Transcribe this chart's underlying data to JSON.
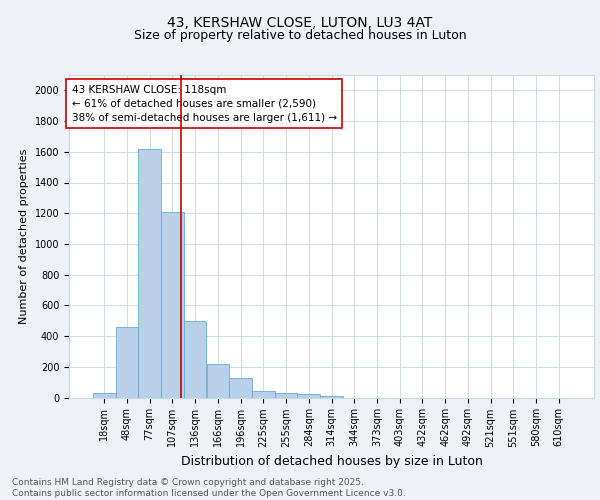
{
  "title1": "43, KERSHAW CLOSE, LUTON, LU3 4AT",
  "title2": "Size of property relative to detached houses in Luton",
  "xlabel": "Distribution of detached houses by size in Luton",
  "ylabel": "Number of detached properties",
  "categories": [
    "18sqm",
    "48sqm",
    "77sqm",
    "107sqm",
    "136sqm",
    "166sqm",
    "196sqm",
    "225sqm",
    "255sqm",
    "284sqm",
    "314sqm",
    "344sqm",
    "373sqm",
    "403sqm",
    "432sqm",
    "462sqm",
    "492sqm",
    "521sqm",
    "551sqm",
    "580sqm",
    "610sqm"
  ],
  "values": [
    30,
    460,
    1620,
    1210,
    500,
    220,
    130,
    45,
    30,
    20,
    10,
    0,
    0,
    0,
    0,
    0,
    0,
    0,
    0,
    0,
    0
  ],
  "bar_color": "#b8d0e8",
  "bar_edge_color": "#6aaad4",
  "vline_x": 3.37,
  "vline_color": "#cc0000",
  "annotation_text": "43 KERSHAW CLOSE: 118sqm\n← 61% of detached houses are smaller (2,590)\n38% of semi-detached houses are larger (1,611) →",
  "annotation_box_color": "white",
  "annotation_box_edge": "#cc0000",
  "ylim": [
    0,
    2100
  ],
  "yticks": [
    0,
    200,
    400,
    600,
    800,
    1000,
    1200,
    1400,
    1600,
    1800,
    2000
  ],
  "bg_color": "#eef2f7",
  "plot_bg_color": "#ffffff",
  "grid_color": "#c8d8e8",
  "title_fontsize": 10,
  "subtitle_fontsize": 9,
  "xlabel_fontsize": 9,
  "ylabel_fontsize": 8,
  "tick_fontsize": 7,
  "annotation_fontsize": 7.5,
  "footer_fontsize": 6.5,
  "footer": "Contains HM Land Registry data © Crown copyright and database right 2025.\nContains public sector information licensed under the Open Government Licence v3.0."
}
